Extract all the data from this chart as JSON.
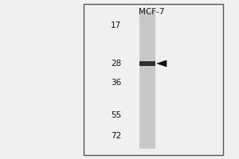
{
  "title": "MCF-7",
  "mw_markers": [
    72,
    55,
    36,
    28,
    17
  ],
  "band_mw": 28,
  "outer_bg": "#f0f0f0",
  "inner_bg": "#f0f0f0",
  "gel_color": "#c8c8c8",
  "band_color": "#303030",
  "border_color": "#555555",
  "arrow_color": "#111111",
  "text_color": "#111111",
  "figsize": [
    3.0,
    2.0
  ],
  "dpi": 100,
  "mw_log_min": 2.833,
  "mw_log_max": 4.277
}
